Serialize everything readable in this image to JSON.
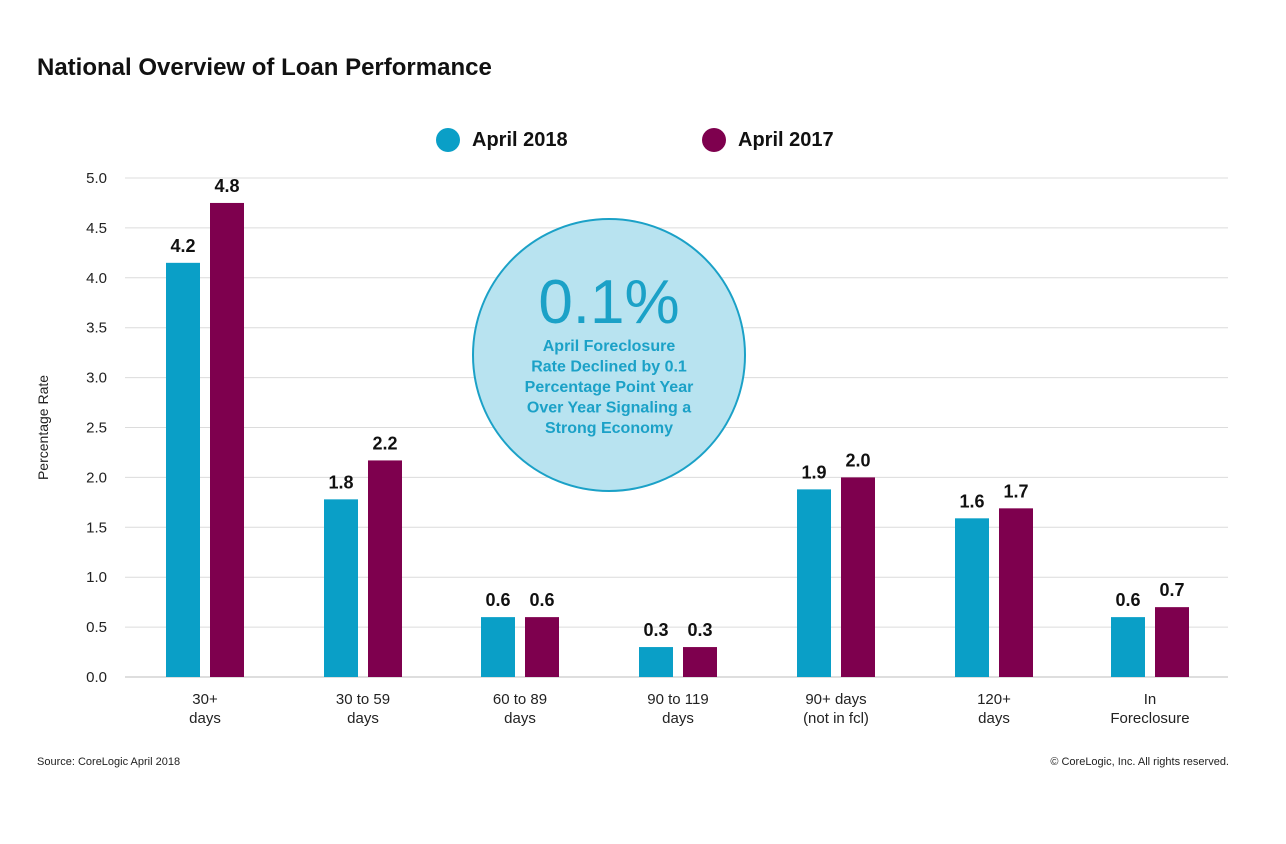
{
  "header": {
    "title": "National Overview of Loan Performance"
  },
  "footer": {
    "source": "Source: CoreLogic April 2018",
    "copyright": "© CoreLogic, Inc. All rights reserved."
  },
  "callout": {
    "value": "0.1%",
    "lines": [
      "April Foreclosure",
      "Rate Declined by 0.1",
      "Percentage Point Year",
      "Over Year Signaling a",
      "Strong Economy"
    ]
  },
  "chart_data": {
    "type": "bar",
    "title": "National Overview of Loan Performance",
    "ylabel": "Percentage Rate",
    "xlabel": "",
    "ylim": [
      0,
      5.0
    ],
    "yticks": [
      "0.0",
      "0.5",
      "1.0",
      "1.5",
      "2.0",
      "2.5",
      "3.0",
      "3.5",
      "4.0",
      "4.5",
      "5.0"
    ],
    "grid": true,
    "legend_position": "top-center",
    "categories": [
      [
        "30+",
        "days"
      ],
      [
        "30 to 59",
        "days"
      ],
      [
        "60 to 89",
        "days"
      ],
      [
        "90 to 119",
        "days"
      ],
      [
        "90+ days",
        "(not in fcl)"
      ],
      [
        "120+",
        "days"
      ],
      [
        "In",
        "Foreclosure"
      ]
    ],
    "series": [
      {
        "name": "April 2018",
        "color": "#0a9fc7",
        "values": [
          4.15,
          1.78,
          0.6,
          0.3,
          1.88,
          1.59,
          0.6
        ],
        "labels": [
          "4.2",
          "1.8",
          "0.6",
          "0.3",
          "1.9",
          "1.6",
          "0.6"
        ]
      },
      {
        "name": "April 2017",
        "color": "#7e004e",
        "values": [
          4.75,
          2.17,
          0.6,
          0.3,
          2.0,
          1.69,
          0.7
        ],
        "labels": [
          "4.8",
          "2.2",
          "0.6",
          "0.3",
          "2.0",
          "1.7",
          "0.7"
        ]
      }
    ]
  }
}
